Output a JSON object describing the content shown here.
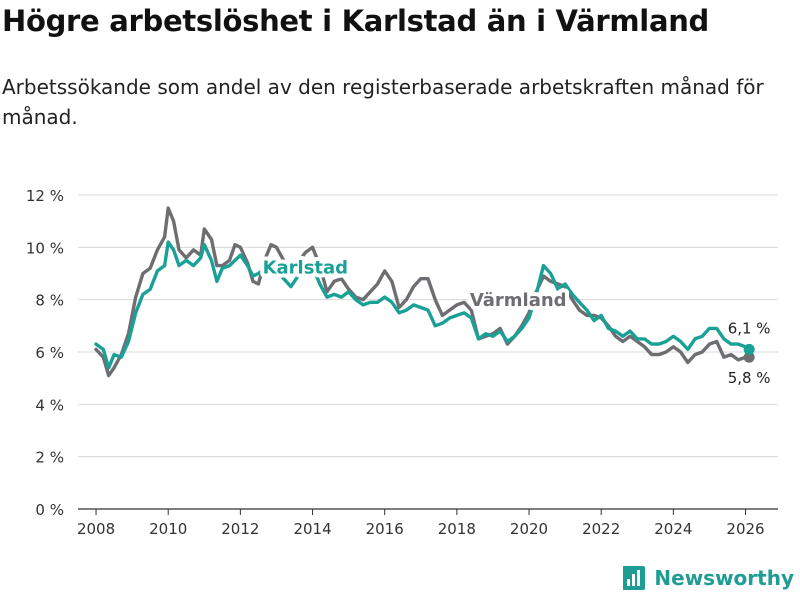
{
  "header": {
    "title": "Högre arbetslöshet i Karlstad än i Värmland",
    "subtitle": "Arbetssökande som andel av den registerbaserade arbetskraften månad för månad."
  },
  "branding": {
    "name": "Newsworthy"
  },
  "colors": {
    "karlstad": "#1aa197",
    "varmland": "#6e6e72",
    "grid": "#d8d8d8",
    "axis": "#333333"
  },
  "chart_data": {
    "type": "line",
    "title": "Högre arbetslöshet i Karlstad än i Värmland",
    "ylim": [
      0,
      12
    ],
    "xlim": [
      2007.5,
      2026.9
    ],
    "yticks": [
      0,
      2,
      4,
      6,
      8,
      10,
      12
    ],
    "ytick_labels": [
      "0 %",
      "2 %",
      "4 %",
      "6 %",
      "8 %",
      "10 %",
      "12 %"
    ],
    "xticks": [
      2008,
      2010,
      2012,
      2014,
      2016,
      2018,
      2020,
      2022,
      2024,
      2026
    ],
    "xtick_labels": [
      "2008",
      "2010",
      "2012",
      "2014",
      "2016",
      "2018",
      "2020",
      "2022",
      "2024",
      "2026"
    ],
    "grid": true,
    "series": [
      {
        "name": "Värmland",
        "label": "Värmland",
        "end_label": "5,8 %",
        "end_value": 5.8,
        "x": [
          2008.0,
          2008.2,
          2008.35,
          2008.5,
          2008.7,
          2008.9,
          2009.1,
          2009.3,
          2009.5,
          2009.7,
          2009.9,
          2010.0,
          2010.15,
          2010.3,
          2010.5,
          2010.7,
          2010.9,
          2011.0,
          2011.2,
          2011.35,
          2011.5,
          2011.7,
          2011.85,
          2012.0,
          2012.2,
          2012.35,
          2012.5,
          2012.7,
          2012.85,
          2013.0,
          2013.2,
          2013.4,
          2013.6,
          2013.8,
          2014.0,
          2014.2,
          2014.4,
          2014.6,
          2014.8,
          2015.0,
          2015.2,
          2015.4,
          2015.6,
          2015.8,
          2016.0,
          2016.2,
          2016.4,
          2016.6,
          2016.8,
          2017.0,
          2017.2,
          2017.4,
          2017.6,
          2017.8,
          2018.0,
          2018.2,
          2018.4,
          2018.6,
          2018.8,
          2019.0,
          2019.2,
          2019.4,
          2019.6,
          2019.8,
          2020.0,
          2020.2,
          2020.4,
          2020.6,
          2020.8,
          2021.0,
          2021.2,
          2021.4,
          2021.6,
          2021.8,
          2022.0,
          2022.2,
          2022.4,
          2022.6,
          2022.8,
          2023.0,
          2023.2,
          2023.4,
          2023.6,
          2023.8,
          2024.0,
          2024.2,
          2024.4,
          2024.6,
          2024.8,
          2025.0,
          2025.2,
          2025.4,
          2025.6,
          2025.8,
          2026.0,
          2026.1
        ],
        "values": [
          6.1,
          5.8,
          5.1,
          5.4,
          5.9,
          6.7,
          8.1,
          9.0,
          9.2,
          9.9,
          10.4,
          11.5,
          11.0,
          9.9,
          9.6,
          9.9,
          9.7,
          10.7,
          10.3,
          9.3,
          9.3,
          9.5,
          10.1,
          10.0,
          9.4,
          8.7,
          8.6,
          9.6,
          10.1,
          10.0,
          9.5,
          9.0,
          9.4,
          9.8,
          10.0,
          9.3,
          8.3,
          8.7,
          8.8,
          8.4,
          8.1,
          8.0,
          8.3,
          8.6,
          9.1,
          8.7,
          7.7,
          8.0,
          8.5,
          8.8,
          8.8,
          8.0,
          7.4,
          7.6,
          7.8,
          7.9,
          7.6,
          6.5,
          6.6,
          6.7,
          6.9,
          6.3,
          6.6,
          7.0,
          7.5,
          8.3,
          8.9,
          8.7,
          8.6,
          8.5,
          8.0,
          7.6,
          7.4,
          7.4,
          7.3,
          7.0,
          6.6,
          6.4,
          6.6,
          6.4,
          6.2,
          5.9,
          5.9,
          6.0,
          6.2,
          6.0,
          5.6,
          5.9,
          6.0,
          6.3,
          6.4,
          5.8,
          5.9,
          5.7,
          5.8,
          5.8
        ]
      },
      {
        "name": "Karlstad",
        "label": "Karlstad",
        "end_label": "6,1 %",
        "end_value": 6.1,
        "x": [
          2008.0,
          2008.2,
          2008.35,
          2008.5,
          2008.7,
          2008.9,
          2009.1,
          2009.3,
          2009.5,
          2009.7,
          2009.9,
          2010.0,
          2010.15,
          2010.3,
          2010.5,
          2010.7,
          2010.9,
          2011.0,
          2011.2,
          2011.35,
          2011.5,
          2011.7,
          2011.85,
          2012.0,
          2012.2,
          2012.35,
          2012.5,
          2012.7,
          2012.85,
          2013.0,
          2013.2,
          2013.4,
          2013.6,
          2013.8,
          2014.0,
          2014.2,
          2014.4,
          2014.6,
          2014.8,
          2015.0,
          2015.2,
          2015.4,
          2015.6,
          2015.8,
          2016.0,
          2016.2,
          2016.4,
          2016.6,
          2016.8,
          2017.0,
          2017.2,
          2017.4,
          2017.6,
          2017.8,
          2018.0,
          2018.2,
          2018.4,
          2018.6,
          2018.8,
          2019.0,
          2019.2,
          2019.4,
          2019.6,
          2019.8,
          2020.0,
          2020.2,
          2020.4,
          2020.6,
          2020.8,
          2021.0,
          2021.2,
          2021.4,
          2021.6,
          2021.8,
          2022.0,
          2022.2,
          2022.4,
          2022.6,
          2022.8,
          2023.0,
          2023.2,
          2023.4,
          2023.6,
          2023.8,
          2024.0,
          2024.2,
          2024.4,
          2024.6,
          2024.8,
          2025.0,
          2025.2,
          2025.4,
          2025.6,
          2025.8,
          2026.0,
          2026.1
        ],
        "values": [
          6.3,
          6.1,
          5.4,
          5.9,
          5.8,
          6.4,
          7.5,
          8.2,
          8.4,
          9.1,
          9.3,
          10.2,
          9.9,
          9.3,
          9.5,
          9.3,
          9.6,
          10.1,
          9.5,
          8.7,
          9.2,
          9.3,
          9.5,
          9.7,
          9.3,
          8.9,
          9.0,
          9.2,
          9.4,
          9.1,
          8.8,
          8.5,
          8.9,
          9.1,
          9.3,
          8.6,
          8.1,
          8.2,
          8.1,
          8.3,
          8.0,
          7.8,
          7.9,
          7.9,
          8.1,
          7.9,
          7.5,
          7.6,
          7.8,
          7.7,
          7.6,
          7.0,
          7.1,
          7.3,
          7.4,
          7.5,
          7.3,
          6.5,
          6.7,
          6.6,
          6.8,
          6.4,
          6.6,
          6.9,
          7.3,
          8.2,
          9.3,
          9.0,
          8.4,
          8.6,
          8.2,
          7.9,
          7.6,
          7.2,
          7.4,
          6.9,
          6.8,
          6.6,
          6.8,
          6.5,
          6.5,
          6.3,
          6.3,
          6.4,
          6.6,
          6.4,
          6.1,
          6.5,
          6.6,
          6.9,
          6.9,
          6.5,
          6.3,
          6.3,
          6.2,
          6.1
        ]
      }
    ]
  }
}
